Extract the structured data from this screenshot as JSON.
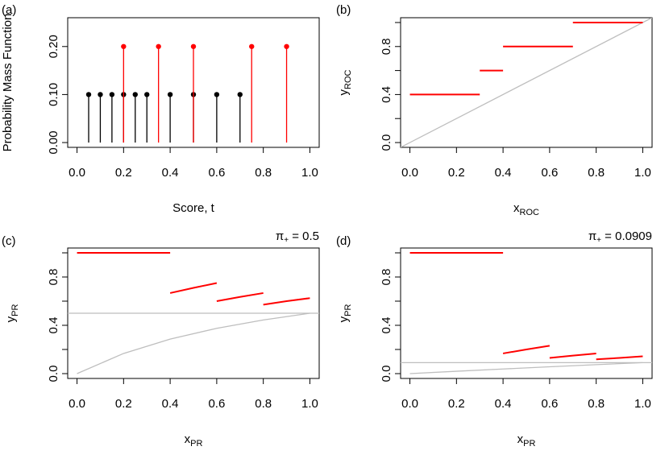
{
  "chart_data": [
    {
      "type": "stem",
      "panel_label": "(a)",
      "xlabel": "Score, t",
      "ylabel": "Probability Mass Function",
      "xlim": [
        -0.04,
        1.04
      ],
      "ylim": [
        -0.01,
        0.26
      ],
      "xticks": [
        {
          "value": 0,
          "label": "0.0"
        },
        {
          "value": 0.2,
          "label": "0.2"
        },
        {
          "value": 0.4,
          "label": "0.4"
        },
        {
          "value": 0.6,
          "label": "0.6"
        },
        {
          "value": 0.8,
          "label": "0.8"
        },
        {
          "value": 1,
          "label": "1.0"
        }
      ],
      "yticks": [
        {
          "value": 0,
          "label": "0.00"
        },
        {
          "value": 0.1,
          "label": "0.10"
        },
        {
          "value": 0.2,
          "label": "0.20"
        }
      ],
      "series": [
        {
          "color": "#000000",
          "x": [
            0.05,
            0.1,
            0.15,
            0.2,
            0.25,
            0.3,
            0.4,
            0.5,
            0.6,
            0.7
          ],
          "values": [
            0.1,
            0.1,
            0.1,
            0.1,
            0.1,
            0.1,
            0.1,
            0.1,
            0.1,
            0.1
          ]
        },
        {
          "color": "#ff0000",
          "x": [
            0.2,
            0.35,
            0.5,
            0.75,
            0.9
          ],
          "values": [
            0.2,
            0.2,
            0.2,
            0.2,
            0.2
          ]
        }
      ]
    },
    {
      "type": "line",
      "panel_label": "(b)",
      "xlabel": {
        "base": "x",
        "sub": "ROC"
      },
      "ylabel": {
        "base": "y",
        "sub": "ROC"
      },
      "xlim": [
        -0.04,
        1.04
      ],
      "ylim": [
        -0.04,
        1.04
      ],
      "xticks": [
        {
          "value": 0,
          "label": "0.0"
        },
        {
          "value": 0.2,
          "label": "0.2"
        },
        {
          "value": 0.4,
          "label": "0.4"
        },
        {
          "value": 0.6,
          "label": "0.6"
        },
        {
          "value": 0.8,
          "label": "0.8"
        },
        {
          "value": 1,
          "label": "1.0"
        }
      ],
      "yticks": [
        {
          "value": 0,
          "label": "0.0"
        },
        {
          "value": 0.2
        },
        {
          "value": 0.4,
          "label": "0.4"
        },
        {
          "value": 0.6
        },
        {
          "value": 0.8,
          "label": "0.8"
        },
        {
          "value": 1
        }
      ],
      "abline": {
        "intercept": 0,
        "slope": 1,
        "color": "#bebebe"
      },
      "series": [
        {
          "color": "#ff0000",
          "x": [
            0,
            0.3
          ],
          "values": [
            0.4,
            0.4
          ]
        },
        {
          "color": "#ff0000",
          "x": [
            0.3,
            0.4
          ],
          "values": [
            0.6,
            0.6
          ]
        },
        {
          "color": "#ff0000",
          "x": [
            0.4,
            0.7
          ],
          "values": [
            0.8,
            0.8
          ]
        },
        {
          "color": "#ff0000",
          "x": [
            0.7,
            1
          ],
          "values": [
            1,
            1
          ]
        }
      ]
    },
    {
      "type": "line",
      "panel_label": "(c)",
      "annotation": {
        "base": "π",
        "sub": "+",
        "text": " = 0.5"
      },
      "xlabel": {
        "base": "x",
        "sub": "PR"
      },
      "ylabel": {
        "base": "y",
        "sub": "PR"
      },
      "xlim": [
        -0.04,
        1.04
      ],
      "ylim": [
        -0.04,
        1.04
      ],
      "xticks": [
        {
          "value": 0,
          "label": "0.0"
        },
        {
          "value": 0.2,
          "label": "0.2"
        },
        {
          "value": 0.4,
          "label": "0.4"
        },
        {
          "value": 0.6,
          "label": "0.6"
        },
        {
          "value": 0.8,
          "label": "0.8"
        },
        {
          "value": 1,
          "label": "1.0"
        }
      ],
      "yticks": [
        {
          "value": 0,
          "label": "0.0"
        },
        {
          "value": 0.2
        },
        {
          "value": 0.4,
          "label": "0.4"
        },
        {
          "value": 0.6
        },
        {
          "value": 0.8,
          "label": "0.8"
        },
        {
          "value": 1
        }
      ],
      "abline": {
        "intercept": 0.5,
        "slope": 0,
        "color": "#bebebe"
      },
      "series": [
        {
          "color": "#bebebe",
          "x": [
            0,
            0.2,
            0.4,
            0.6,
            0.8,
            1
          ],
          "values": [
            0,
            0.167,
            0.286,
            0.375,
            0.444,
            0.5
          ]
        },
        {
          "color": "#ff0000",
          "x": [
            0,
            0.4
          ],
          "values": [
            1,
            1
          ]
        },
        {
          "color": "#ff0000",
          "x": [
            0.4,
            0.5,
            0.6
          ],
          "values": [
            0.667,
            0.71,
            0.75
          ]
        },
        {
          "color": "#ff0000",
          "x": [
            0.6,
            0.7,
            0.8
          ],
          "values": [
            0.6,
            0.635,
            0.667
          ]
        },
        {
          "color": "#ff0000",
          "x": [
            0.8,
            0.9,
            1
          ],
          "values": [
            0.571,
            0.6,
            0.625
          ]
        }
      ]
    },
    {
      "type": "line",
      "panel_label": "(d)",
      "annotation": {
        "base": "π",
        "sub": "+",
        "text": " = 0.0909"
      },
      "xlabel": {
        "base": "x",
        "sub": "PR"
      },
      "ylabel": {
        "base": "y",
        "sub": "PR"
      },
      "xlim": [
        -0.04,
        1.04
      ],
      "ylim": [
        -0.04,
        1.04
      ],
      "xticks": [
        {
          "value": 0,
          "label": "0.0"
        },
        {
          "value": 0.2,
          "label": "0.2"
        },
        {
          "value": 0.4,
          "label": "0.4"
        },
        {
          "value": 0.6,
          "label": "0.6"
        },
        {
          "value": 0.8,
          "label": "0.8"
        },
        {
          "value": 1,
          "label": "1.0"
        }
      ],
      "yticks": [
        {
          "value": 0,
          "label": "0.0"
        },
        {
          "value": 0.2
        },
        {
          "value": 0.4,
          "label": "0.4"
        },
        {
          "value": 0.6
        },
        {
          "value": 0.8,
          "label": "0.8"
        },
        {
          "value": 1
        }
      ],
      "abline": {
        "intercept": 0.0909,
        "slope": 0,
        "color": "#bebebe"
      },
      "series": [
        {
          "color": "#bebebe",
          "x": [
            0,
            0.2,
            0.4,
            0.6,
            0.8,
            1
          ],
          "values": [
            0,
            0.0196,
            0.0385,
            0.0566,
            0.0741,
            0.0909
          ]
        },
        {
          "color": "#ff0000",
          "x": [
            0,
            0.4
          ],
          "values": [
            1,
            1
          ]
        },
        {
          "color": "#ff0000",
          "x": [
            0.4,
            0.5,
            0.6
          ],
          "values": [
            0.167,
            0.2,
            0.231
          ]
        },
        {
          "color": "#ff0000",
          "x": [
            0.6,
            0.7,
            0.8
          ],
          "values": [
            0.13,
            0.149,
            0.167
          ]
        },
        {
          "color": "#ff0000",
          "x": [
            0.8,
            0.9,
            1
          ],
          "values": [
            0.118,
            0.13,
            0.143
          ]
        }
      ]
    }
  ]
}
